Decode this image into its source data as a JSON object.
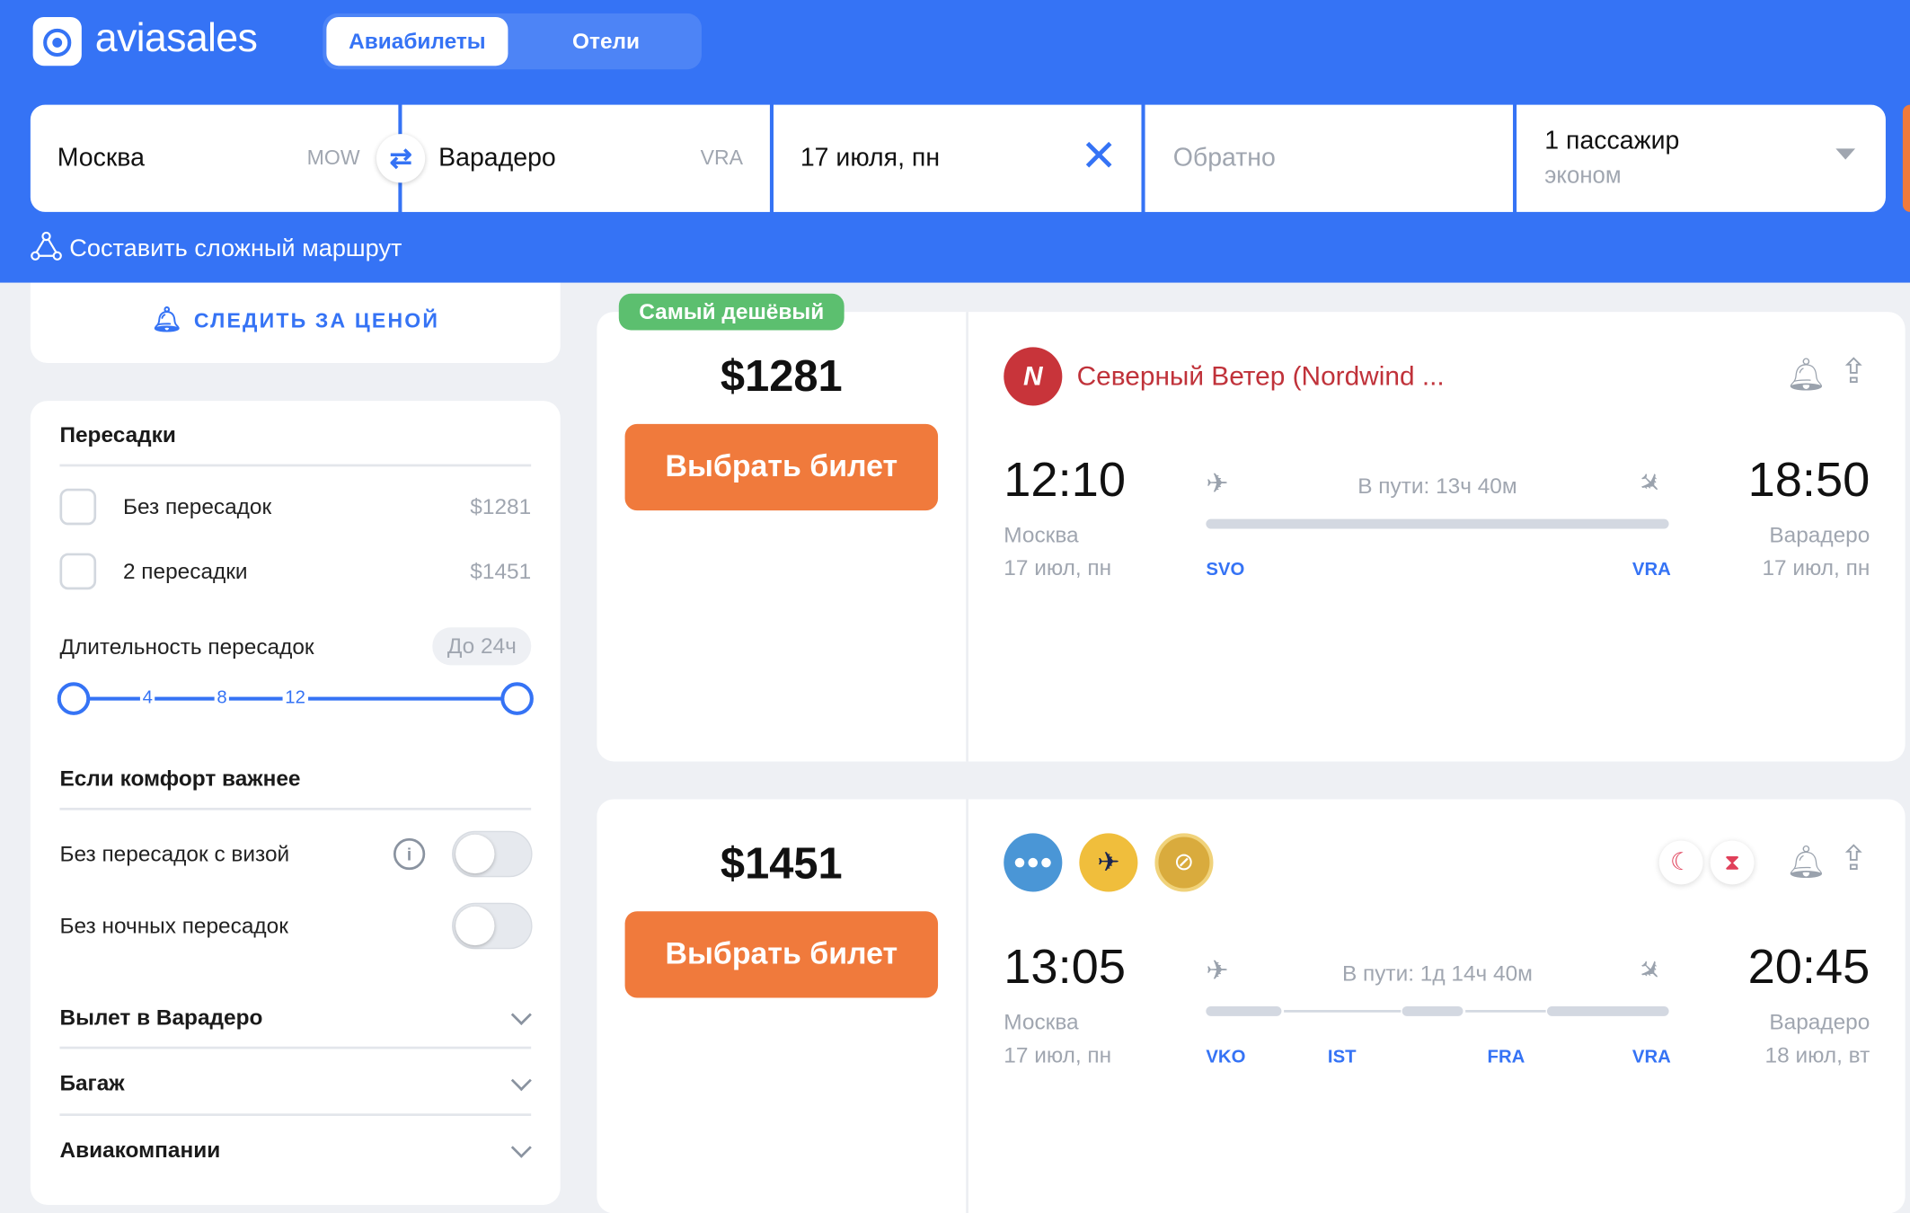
{
  "header": {
    "logo": "aviasales",
    "tabs": [
      {
        "label": "Авиабилеты",
        "active": true
      },
      {
        "label": "Отели",
        "active": false
      }
    ],
    "brand_color": "#3573f5"
  },
  "search": {
    "from": {
      "city": "Москва",
      "code": "MOW"
    },
    "to": {
      "city": "Варадеро",
      "code": "VRA"
    },
    "depart": "17 июля, пн",
    "return_placeholder": "Обратно",
    "passengers": "1 пассажир",
    "class": "эконом"
  },
  "complex_route": "Составить сложный маршрут",
  "sidebar": {
    "watch_price": "СЛЕДИТЬ ЗА ЦЕНОЙ",
    "stops_title": "Пересадки",
    "stops": [
      {
        "label": "Без пересадок",
        "price": "$1281",
        "checked": false
      },
      {
        "label": "2 пересадки",
        "price": "$1451",
        "checked": false
      }
    ],
    "layover_title": "Длительность пересадок",
    "layover_badge": "До 24ч",
    "slider_ticks": [
      "4",
      "8",
      "12"
    ],
    "comfort_title": "Если комфорт важнее",
    "comfort": [
      {
        "label": "Без пересадок с визой",
        "on": false
      },
      {
        "label": "Без ночных пересадок",
        "on": false
      }
    ],
    "sections": [
      "Вылет в Варадеро",
      "Багаж",
      "Авиакомпании"
    ]
  },
  "tickets": [
    {
      "badge": "Самый дешёвый",
      "price": "$1281",
      "buy": "Выбрать билет",
      "airline": "Северный Ветер (Nordwind ...",
      "dep_time": "12:10",
      "arr_time": "18:50",
      "duration": "В пути: 13ч 40м",
      "dep_city": "Москва",
      "arr_city": "Варадеро",
      "dep_date": "17 июл, пн",
      "arr_date": "17 июл, пн",
      "airports": [
        "SVO",
        "VRA"
      ]
    },
    {
      "price": "$1451",
      "buy": "Выбрать билет",
      "dep_time": "13:05",
      "arr_time": "20:45",
      "duration": "В пути: 1д 14ч 40м",
      "dep_city": "Москва",
      "arr_city": "Варадеро",
      "dep_date": "17 июл, пн",
      "arr_date": "18 июл, вт",
      "airports": [
        "VKO",
        "IST",
        "FRA",
        "VRA"
      ]
    }
  ]
}
